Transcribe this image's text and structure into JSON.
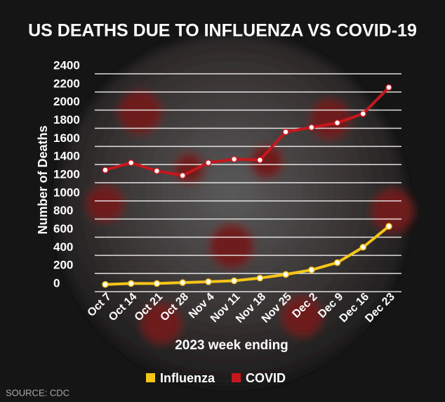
{
  "chart_data": {
    "type": "line",
    "title": "US DEATHS DUE TO INFLUENZA VS COVID-19",
    "y_label": "Number of Deaths",
    "x_label": "2023 week ending",
    "source": "SOURCE: CDC",
    "categories": [
      "Oct 7",
      "Oct 14",
      "Oct 21",
      "Oct 28",
      "Nov 4",
      "Nov 11",
      "Nov 18",
      "Nov 25",
      "Dec 2",
      "Dec 9",
      "Dec 16",
      "Dec 23"
    ],
    "series": [
      {
        "name": "Influenza",
        "color": "#f5c518",
        "values": [
          10,
          20,
          20,
          30,
          40,
          50,
          80,
          120,
          170,
          250,
          420,
          650
        ]
      },
      {
        "name": "COVID",
        "color": "#c8161d",
        "values": [
          1270,
          1350,
          1260,
          1210,
          1350,
          1390,
          1380,
          1690,
          1740,
          1790,
          1890,
          2180
        ]
      }
    ],
    "ylim": [
      0,
      2400
    ],
    "yticks": [
      0,
      200,
      400,
      600,
      800,
      1000,
      1200,
      1400,
      1600,
      1800,
      2000,
      2200,
      2400
    ],
    "grid": true
  }
}
